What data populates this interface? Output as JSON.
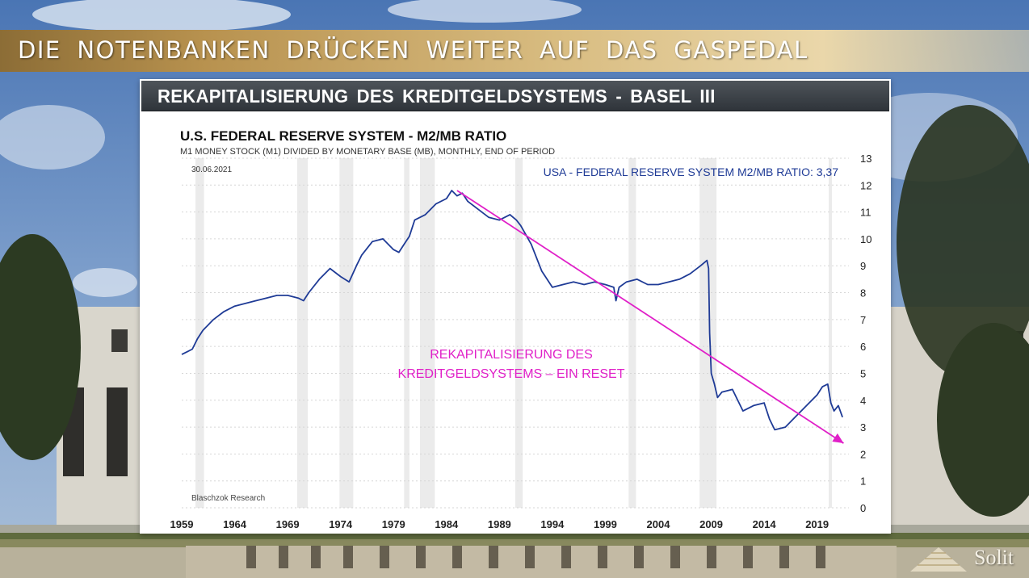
{
  "slide": {
    "banner_title": "DIE NOTENBANKEN DRÜCKEN WEITER AUF DAS GASPEDAL",
    "panel_title": "REKAPITALISIERUNG DES KREDITGELDSYSTEMS - BASEL III",
    "brand": "Solit"
  },
  "colors": {
    "banner_gold": "#b8924f",
    "series": "#1f3b96",
    "trend_arrow": "#e020c8",
    "recession_band": "#ebebeb"
  },
  "chart_data": {
    "type": "line",
    "title": "U.S. FEDERAL RESERVE SYSTEM - M2/MB RATIO",
    "subtitle": "M1 MONEY STOCK (M1) DIVIDED BY MONETARY BASE (MB), MONTHLY, END OF PERIOD",
    "date_label": "30.06.2021",
    "source": "Blaschzok Research",
    "legend": "USA - FEDERAL RESERVE SYSTEM M2/MB RATIO: 3,37",
    "legend_position": "top-right",
    "annotation_line1": "REKAPITALISIERUNG DES",
    "annotation_line2": "KREDITGELDSYSTEMS – EIN RESET",
    "y_axis_position": "right",
    "xlim": [
      1959,
      2022
    ],
    "ylim": [
      0,
      13
    ],
    "x_ticks": [
      1959,
      1964,
      1969,
      1974,
      1979,
      1984,
      1989,
      1994,
      1999,
      2004,
      2009,
      2014,
      2019
    ],
    "y_ticks": [
      0,
      1,
      2,
      3,
      4,
      5,
      6,
      7,
      8,
      9,
      10,
      11,
      12,
      13
    ],
    "grid": "horizontal dotted",
    "recession_shading": [
      [
        1960.3,
        1961.1
      ],
      [
        1969.9,
        1970.9
      ],
      [
        1973.9,
        1975.2
      ],
      [
        1980.0,
        1980.5
      ],
      [
        1981.5,
        1982.9
      ],
      [
        1990.5,
        1991.2
      ],
      [
        2001.2,
        2001.9
      ],
      [
        2007.9,
        2009.5
      ],
      [
        2020.1,
        2020.4
      ]
    ],
    "series": [
      {
        "name": "USA - FEDERAL RESERVE SYSTEM M2/MB RATIO",
        "x": [
          1959.0,
          1959.5,
          1960.0,
          1960.5,
          1961.0,
          1961.5,
          1962.0,
          1963.0,
          1964.0,
          1965.0,
          1966.0,
          1967.0,
          1968.0,
          1969.0,
          1970.0,
          1970.5,
          1971.0,
          1972.0,
          1973.0,
          1974.0,
          1974.8,
          1975.5,
          1976.0,
          1977.0,
          1978.0,
          1979.0,
          1979.5,
          1980.0,
          1980.5,
          1981.0,
          1982.0,
          1983.0,
          1984.0,
          1984.5,
          1985.0,
          1985.5,
          1986.0,
          1987.0,
          1988.0,
          1989.0,
          1990.0,
          1990.6,
          1991.0,
          1992.0,
          1993.0,
          1994.0,
          1995.0,
          1996.0,
          1997.0,
          1998.0,
          1999.0,
          1999.8,
          2000.0,
          2000.3,
          2001.0,
          2002.0,
          2003.0,
          2004.0,
          2005.0,
          2006.0,
          2007.0,
          2008.0,
          2008.6,
          2008.75,
          2008.85,
          2009.0,
          2009.3,
          2009.6,
          2010.0,
          2011.0,
          2012.0,
          2013.0,
          2014.0,
          2014.5,
          2015.0,
          2016.0,
          2017.0,
          2018.0,
          2019.0,
          2019.5,
          2020.0,
          2020.3,
          2020.6,
          2021.0,
          2021.4
        ],
        "y": [
          5.7,
          5.8,
          5.9,
          6.3,
          6.6,
          6.8,
          7.0,
          7.3,
          7.5,
          7.6,
          7.7,
          7.8,
          7.9,
          7.9,
          7.8,
          7.7,
          8.0,
          8.5,
          8.9,
          8.6,
          8.4,
          9.0,
          9.4,
          9.9,
          10.0,
          9.6,
          9.5,
          9.8,
          10.1,
          10.7,
          10.9,
          11.3,
          11.5,
          11.8,
          11.6,
          11.7,
          11.4,
          11.1,
          10.8,
          10.7,
          10.9,
          10.7,
          10.5,
          9.8,
          8.8,
          8.2,
          8.3,
          8.4,
          8.3,
          8.4,
          8.3,
          8.2,
          7.7,
          8.2,
          8.4,
          8.5,
          8.3,
          8.3,
          8.4,
          8.5,
          8.7,
          9.0,
          9.2,
          8.9,
          6.5,
          5.0,
          4.6,
          4.1,
          4.3,
          4.4,
          3.6,
          3.8,
          3.9,
          3.3,
          2.9,
          3.0,
          3.4,
          3.8,
          4.2,
          4.5,
          4.6,
          3.9,
          3.6,
          3.8,
          3.37
        ]
      }
    ],
    "trend_arrow": {
      "x": [
        1985.0,
        2021.5
      ],
      "y": [
        11.8,
        2.4
      ]
    }
  }
}
